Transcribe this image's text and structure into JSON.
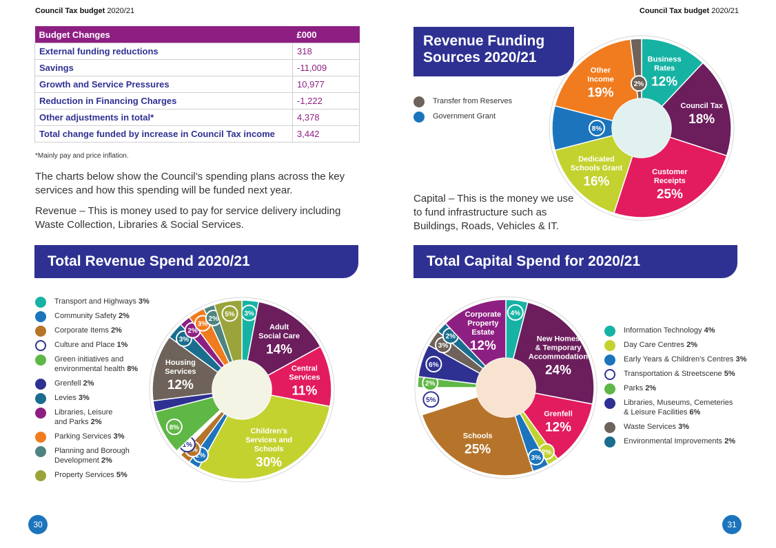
{
  "header": {
    "left_title": "Council Tax budget",
    "left_year": "2020/21",
    "right_title": "Council Tax budget",
    "right_year": "2020/21"
  },
  "budget_table": {
    "header_label": "Budget Changes",
    "header_value": "£000",
    "rows": [
      {
        "label": "External funding reductions",
        "value": "318"
      },
      {
        "label": "Savings",
        "value": "-11,009"
      },
      {
        "label": "Growth and Service Pressures",
        "value": "10,977"
      },
      {
        "label": "Reduction in Financing Charges",
        "value": "-1,222"
      },
      {
        "label": "Other adjustments in total*",
        "value": "4,378"
      },
      {
        "label": "Total change funded by increase in Council Tax income",
        "value": "3,442"
      }
    ],
    "footnote": "*Mainly pay and price inflation."
  },
  "text": {
    "para1": "The charts below show the Council’s spending plans across the key services and how this spending will be funded next year.",
    "para2": "Revenue – This is money used to pay for service delivery including Waste Collection, Libraries & Social Services.",
    "capital": "Capital – This is the money we use to fund infrastructure such as Buildings, Roads, Vehicles & IT."
  },
  "pages": {
    "left": "30",
    "right": "31"
  },
  "colors": {
    "navy": "#2e3192",
    "purple": "#8e1f82",
    "teal": "#16b3a4",
    "plum": "#6b1d5c",
    "pink": "#e31b5f",
    "lime": "#c3d22f",
    "blue": "#1c75bc",
    "orange": "#f07c1f",
    "brown": "#6e625a",
    "ochre": "#b6742a",
    "green": "#5fb746",
    "darkteal": "#1a6d8e",
    "slate": "#4e8480",
    "olive": "#9aa43a"
  },
  "chart_data": [
    {
      "type": "pie",
      "title": "Revenue Funding Sources 2020/21",
      "title_lines": [
        "Revenue Funding",
        "Sources 2020/21"
      ],
      "legend": [
        {
          "name": "Transfer from Reserves",
          "color": "#6e625a"
        },
        {
          "name": "Government Grant",
          "color": "#1c75bc"
        }
      ],
      "slices": [
        {
          "name": "Business Rates",
          "lines": [
            "Business",
            "Rates"
          ],
          "value": 12,
          "color": "#16b3a4",
          "pct": "12%"
        },
        {
          "name": "Council Tax",
          "lines": [
            "Council Tax"
          ],
          "value": 18,
          "color": "#6b1d5c",
          "pct": "18%"
        },
        {
          "name": "Customer Receipts",
          "lines": [
            "Customer",
            "Receipts"
          ],
          "value": 25,
          "color": "#e31b5f",
          "pct": "25%"
        },
        {
          "name": "Dedicated Schools Grant",
          "lines": [
            "Dedicated",
            "Schools Grant"
          ],
          "value": 16,
          "color": "#c3d22f",
          "pct": "16%"
        },
        {
          "name": "Government Grant",
          "lines": [],
          "value": 8,
          "color": "#1c75bc",
          "pct": "8%",
          "badge": true
        },
        {
          "name": "Other Income",
          "lines": [
            "Other",
            "Income"
          ],
          "value": 19,
          "color": "#f07c1f",
          "pct": "19%"
        },
        {
          "name": "Transfer from Reserves",
          "lines": [],
          "value": 2,
          "color": "#6e625a",
          "pct": "2%",
          "badge": true
        }
      ]
    },
    {
      "type": "pie",
      "title": "Total Revenue Spend 2020/21",
      "legend": [
        {
          "name": "Transport and Highways",
          "pct": "3%",
          "color": "#16b3a4"
        },
        {
          "name": "Community Safety",
          "pct": "2%",
          "color": "#1c75bc"
        },
        {
          "name": "Corporate Items",
          "pct": "2%",
          "color": "#b6742a"
        },
        {
          "name": "Culture and Place",
          "pct": "1%",
          "color": "#ffffff"
        },
        {
          "name": "Green initiatives and environmental health",
          "lines": [
            "Green initiatives and",
            "environmental health"
          ],
          "pct": "8%",
          "color": "#5fb746"
        },
        {
          "name": "Grenfell",
          "pct": "2%",
          "color": "#2e3192"
        },
        {
          "name": "Levies",
          "pct": "3%",
          "color": "#1a6d8e"
        },
        {
          "name": "Libraries, Leisure and Parks",
          "lines": [
            "Libraries, Leisure",
            "and Parks"
          ],
          "pct": "2%",
          "color": "#8e1f82"
        },
        {
          "name": "Parking Services",
          "pct": "3%",
          "color": "#f07c1f"
        },
        {
          "name": "Planning and Borough Development",
          "lines": [
            "Planning and Borough",
            "Development"
          ],
          "pct": "2%",
          "color": "#4e8480"
        },
        {
          "name": "Property Services",
          "pct": "5%",
          "color": "#9aa43a"
        }
      ],
      "slices": [
        {
          "name": "Transport and Highways",
          "lines": [],
          "value": 3,
          "color": "#16b3a4",
          "pct": "3%",
          "badge": true
        },
        {
          "name": "Adult Social Care",
          "lines": [
            "Adult",
            "Social Care"
          ],
          "value": 14,
          "color": "#6b1d5c",
          "pct": "14%"
        },
        {
          "name": "Central Services",
          "lines": [
            "Central",
            "Services"
          ],
          "value": 11,
          "color": "#e31b5f",
          "pct": "11%"
        },
        {
          "name": "Children’s Services and Schools",
          "lines": [
            "Children’s",
            "Services and",
            "Schools"
          ],
          "value": 30,
          "color": "#c3d22f",
          "pct": "30%"
        },
        {
          "name": "Community Safety",
          "lines": [],
          "value": 2,
          "color": "#1c75bc",
          "pct": "2%",
          "badge": true
        },
        {
          "name": "Corporate Items",
          "lines": [],
          "value": 2,
          "color": "#b6742a",
          "pct": "2%",
          "badge": true
        },
        {
          "name": "Culture and Place",
          "lines": [],
          "value": 1,
          "color": "#ffffff",
          "pct": "1%",
          "badge": true
        },
        {
          "name": "Green initiatives and environmental health",
          "lines": [],
          "value": 8,
          "color": "#5fb746",
          "pct": "8%",
          "badge": true
        },
        {
          "name": "Grenfell",
          "lines": [],
          "value": 2,
          "color": "#2e3192",
          "pct": "2%"
        },
        {
          "name": "Housing Services",
          "lines": [
            "Housing",
            "Services"
          ],
          "value": 12,
          "color": "#6e625a",
          "pct": "12%"
        },
        {
          "name": "Levies",
          "lines": [],
          "value": 3,
          "color": "#1a6d8e",
          "pct": "3%",
          "badge": true
        },
        {
          "name": "Libraries, Leisure and Parks",
          "lines": [],
          "value": 2,
          "color": "#8e1f82",
          "pct": "2%",
          "badge": true
        },
        {
          "name": "Parking Services",
          "lines": [],
          "value": 3,
          "color": "#f07c1f",
          "pct": "3%",
          "badge": true
        },
        {
          "name": "Planning and Borough Development",
          "lines": [],
          "value": 2,
          "color": "#4e8480",
          "pct": "2%",
          "badge": true
        },
        {
          "name": "Property Services",
          "lines": [],
          "value": 5,
          "color": "#9aa43a",
          "pct": "5%",
          "badge": true
        }
      ]
    },
    {
      "type": "pie",
      "title": "Total Capital Spend for 2020/21",
      "legend": [
        {
          "name": "Information Technology",
          "pct": "4%",
          "color": "#16b3a4"
        },
        {
          "name": "Day Care Centres",
          "pct": "2%",
          "color": "#c3d22f"
        },
        {
          "name": "Early Years & Children’s Centres",
          "pct": "3%",
          "color": "#1c75bc"
        },
        {
          "name": "Transportation & Streetscene",
          "pct": "5%",
          "color": "#ffffff"
        },
        {
          "name": "Parks",
          "pct": "2%",
          "color": "#5fb746"
        },
        {
          "name": "Libraries, Museums, Cemeteries & Leisure Facilities",
          "lines": [
            "Libraries, Museums, Cemeteries",
            "& Leisure Facilities"
          ],
          "pct": "6%",
          "color": "#2e3192"
        },
        {
          "name": "Waste Services",
          "pct": "3%",
          "color": "#6e625a"
        },
        {
          "name": "Environmental Improvements",
          "pct": "2%",
          "color": "#1a6d8e"
        }
      ],
      "slices": [
        {
          "name": "Information Technology",
          "lines": [],
          "value": 4,
          "color": "#16b3a4",
          "pct": "4%",
          "badge": true
        },
        {
          "name": "New Homes & Temporary Accommodation",
          "lines": [
            "New Homes",
            "& Temporary",
            "Accommodation"
          ],
          "value": 24,
          "color": "#6b1d5c",
          "pct": "24%"
        },
        {
          "name": "Grenfell",
          "lines": [
            "Grenfell"
          ],
          "value": 12,
          "color": "#e31b5f",
          "pct": "12%"
        },
        {
          "name": "Day Care Centres",
          "lines": [],
          "value": 2,
          "color": "#c3d22f",
          "pct": "2%",
          "badge": true
        },
        {
          "name": "Early Years & Children’s Centres",
          "lines": [],
          "value": 3,
          "color": "#1c75bc",
          "pct": "3%",
          "badge": true
        },
        {
          "name": "Schools",
          "lines": [
            "Schools"
          ],
          "value": 25,
          "color": "#b6742a",
          "pct": "25%"
        },
        {
          "name": "Transportation & Streetscene",
          "lines": [],
          "value": 5,
          "color": "#ffffff",
          "pct": "5%",
          "badge": true
        },
        {
          "name": "Parks",
          "lines": [],
          "value": 2,
          "color": "#5fb746",
          "pct": "2%",
          "badge": true
        },
        {
          "name": "Libraries, Museums, Cemeteries & Leisure Facilities",
          "lines": [],
          "value": 6,
          "color": "#2e3192",
          "pct": "6%",
          "badge": true
        },
        {
          "name": "Waste Services",
          "lines": [],
          "value": 3,
          "color": "#6e625a",
          "pct": "3%",
          "badge": true
        },
        {
          "name": "Environmental Improvements",
          "lines": [],
          "value": 2,
          "color": "#1a6d8e",
          "pct": "2%",
          "badge": true
        },
        {
          "name": "Corporate Property Estate",
          "lines": [
            "Corporate",
            "Property",
            "Estate"
          ],
          "value": 12,
          "color": "#8e1f82",
          "pct": "12%"
        }
      ]
    }
  ]
}
